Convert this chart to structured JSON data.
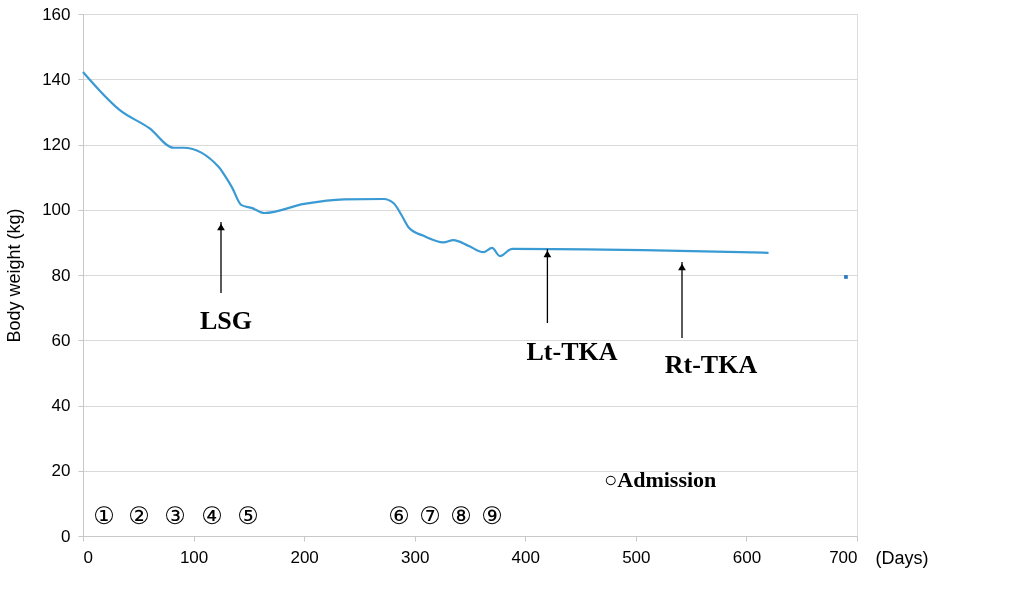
{
  "chart_data": {
    "type": "line",
    "xlabel": "(Days)",
    "ylabel": "Body weight (kg)",
    "xlim": [
      0,
      700
    ],
    "xticks": [
      0,
      100,
      200,
      300,
      400,
      500,
      600,
      700
    ],
    "ylim": [
      0,
      160
    ],
    "yticks": [
      0,
      20,
      40,
      60,
      80,
      100,
      120,
      140,
      160
    ],
    "grid": "y",
    "line_style": "solid",
    "series": [
      {
        "color": "#3a9ad4",
        "marker": "none",
        "x": [
          0,
          33,
          60,
          82,
          91,
          123,
          128,
          135,
          143,
          153,
          164,
          200,
          236,
          272,
          281,
          288,
          295,
          308,
          326,
          335,
          349,
          362,
          370,
          377,
          388,
          507,
          620
        ],
        "values": [
          142.2,
          130.6,
          125,
          119,
          119,
          113,
          110.6,
          106.7,
          101.5,
          100.5,
          99,
          101.8,
          103.2,
          103.3,
          102,
          98.4,
          94.4,
          92,
          90,
          90.7,
          88.9,
          87,
          88.3,
          85.8,
          88,
          87.6,
          86.8
        ]
      },
      {
        "type": "scatter",
        "color": "#2b7bbf",
        "marker": "square",
        "x": [
          690
        ],
        "values": [
          79.4
        ]
      }
    ],
    "annotations": [
      "LSG",
      {
        "text": "Lt-TKA",
        "x": 420,
        "y": 88
      },
      "Rt-TKA",
      "①",
      "②",
      "③",
      "④",
      "⑤",
      "⑥",
      "⑦",
      "⑧",
      "⑨",
      "○Admission"
    ]
  }
}
